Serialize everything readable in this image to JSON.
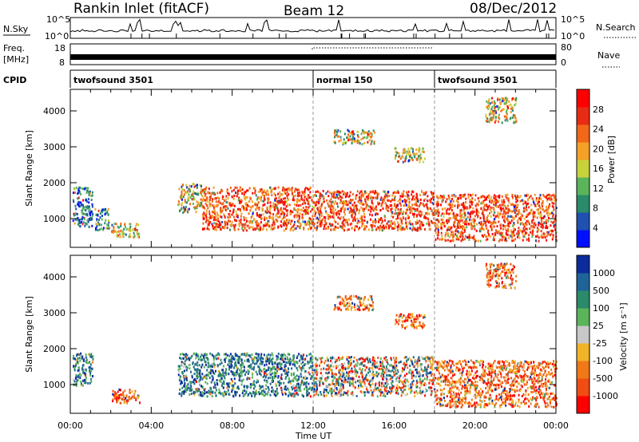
{
  "header": {
    "station": "Rankin Inlet (fitACF)",
    "beam": "Beam 12",
    "date": "08/Dec/2012"
  },
  "param_panel": {
    "nsky_label": "N.Sky",
    "nsky_ticks": [
      "10^5",
      "10^0"
    ],
    "nsearch_label": "N.Search",
    "nsearch_ticks": [
      "10^5",
      "10^0"
    ],
    "freq_label_1": "Freq.",
    "freq_label_2": "[MHz]",
    "freq_ticks": [
      "18",
      "8"
    ],
    "nave_label": "Nave",
    "nave_ticks": [
      "80",
      "0"
    ],
    "cpid_label": "CPID",
    "cpid_segments": [
      {
        "label": "twofsound 3501",
        "start_hr": 0,
        "end_hr": 12
      },
      {
        "label": "normal 150",
        "start_hr": 12,
        "end_hr": 18
      },
      {
        "label": "twofsound 3501",
        "start_hr": 18,
        "end_hr": 24
      }
    ]
  },
  "chart_data": [
    {
      "type": "heatmap",
      "title": "",
      "xlabel": "",
      "ylabel": "Slant Range [km]",
      "xlim": [
        0,
        24
      ],
      "ylim": [
        200,
        4600
      ],
      "yticks": [
        "1000",
        "2000",
        "3000",
        "4000"
      ],
      "colorbar": {
        "label": "Power [dB]",
        "ticks": [
          "4",
          "8",
          "12",
          "16",
          "20",
          "24",
          "28"
        ],
        "colors": [
          "#0010ff",
          "#2050b0",
          "#2a8a6a",
          "#5ab45a",
          "#c8d23c",
          "#f5a028",
          "#f06818",
          "#e82c14",
          "#ff0000"
        ]
      },
      "regions": [
        {
          "t": [
            0.1,
            1.1
          ],
          "r": [
            800,
            1900
          ],
          "level": "low"
        },
        {
          "t": [
            1.2,
            1.9
          ],
          "r": [
            700,
            1300
          ],
          "level": "low"
        },
        {
          "t": [
            2.0,
            3.4
          ],
          "r": [
            500,
            900
          ],
          "level": "mid"
        },
        {
          "t": [
            5.3,
            6.5
          ],
          "r": [
            1200,
            2000
          ],
          "level": "mid"
        },
        {
          "t": [
            6.5,
            12.0
          ],
          "r": [
            700,
            1900
          ],
          "level": "high"
        },
        {
          "t": [
            12.0,
            18.0
          ],
          "r": [
            700,
            1800
          ],
          "level": "high"
        },
        {
          "t": [
            18.0,
            24.0
          ],
          "r": [
            400,
            1700
          ],
          "level": "high"
        },
        {
          "t": [
            13.0,
            15.0
          ],
          "r": [
            3100,
            3500
          ],
          "level": "mid"
        },
        {
          "t": [
            16.0,
            17.5
          ],
          "r": [
            2600,
            3000
          ],
          "level": "mid"
        },
        {
          "t": [
            20.5,
            22.0
          ],
          "r": [
            3700,
            4400
          ],
          "level": "mid"
        }
      ]
    },
    {
      "type": "heatmap",
      "title": "",
      "xlabel": "Time UT",
      "ylabel": "Slant Range [km]",
      "xlim": [
        0,
        24
      ],
      "ylim": [
        200,
        4600
      ],
      "xticks": [
        "00:00",
        "04:00",
        "08:00",
        "12:00",
        "16:00",
        "20:00",
        "00:00"
      ],
      "yticks": [
        "1000",
        "2000",
        "3000",
        "4000"
      ],
      "colorbar": {
        "label": "Velocity [m s⁻¹]",
        "ticks": [
          "1000",
          "500",
          "100",
          "25",
          "-25",
          "-100",
          "-500",
          "-1000"
        ],
        "colors": [
          "#0c2c9c",
          "#1e6496",
          "#2a8a6a",
          "#5ab45a",
          "#c8c8c8",
          "#f0b428",
          "#f07818",
          "#f04c14",
          "#ff0000"
        ]
      },
      "regions": [
        {
          "t": [
            0.1,
            1.1
          ],
          "r": [
            1000,
            1900
          ],
          "level": "pos"
        },
        {
          "t": [
            2.0,
            3.4
          ],
          "r": [
            500,
            900
          ],
          "level": "neg"
        },
        {
          "t": [
            5.3,
            12.0
          ],
          "r": [
            700,
            1900
          ],
          "level": "pos"
        },
        {
          "t": [
            12.0,
            18.0
          ],
          "r": [
            700,
            1800
          ],
          "level": "mixed"
        },
        {
          "t": [
            18.0,
            24.0
          ],
          "r": [
            400,
            1700
          ],
          "level": "neg"
        },
        {
          "t": [
            13.0,
            15.0
          ],
          "r": [
            3100,
            3500
          ],
          "level": "neg"
        },
        {
          "t": [
            16.0,
            17.5
          ],
          "r": [
            2600,
            3000
          ],
          "level": "neg"
        },
        {
          "t": [
            20.5,
            22.0
          ],
          "r": [
            3700,
            4400
          ],
          "level": "neg"
        }
      ]
    }
  ]
}
